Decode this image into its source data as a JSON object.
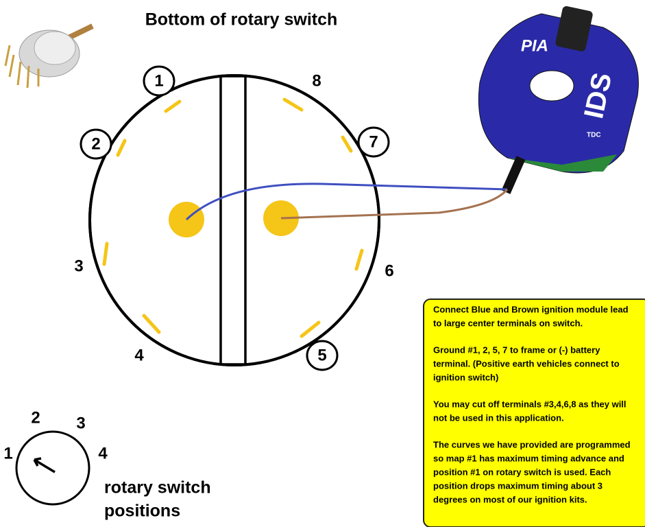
{
  "header": {
    "title": "Bottom of rotary switch"
  },
  "terminals": [
    "1",
    "2",
    "3",
    "4",
    "5",
    "6",
    "7",
    "8"
  ],
  "module": {
    "brand": "PIA",
    "name": "IDS",
    "marker": "TDC"
  },
  "note": {
    "paragraphs": [
      [
        "Connect Blue and Brown ignition module lead",
        "to large center terminals on switch."
      ],
      [
        "Ground #1, 2, 5, 7 to frame or (-) battery",
        "terminal. (Positive earth vehicles connect to",
        "ignition switch)"
      ],
      [
        "You may cut off terminals #3,4,6,8 as they will",
        "not be used in this application."
      ],
      [
        "The curves we have provided are programmed",
        "so map #1 has maximum timing advance and",
        "position #1 on rotary switch is used. Each",
        "position drops maximum timing about 3",
        "degrees on most of our ignition kits."
      ]
    ]
  },
  "positions": {
    "labels": [
      "1",
      "2",
      "3",
      "4"
    ],
    "caption": [
      "rotary switch",
      "positions"
    ]
  }
}
